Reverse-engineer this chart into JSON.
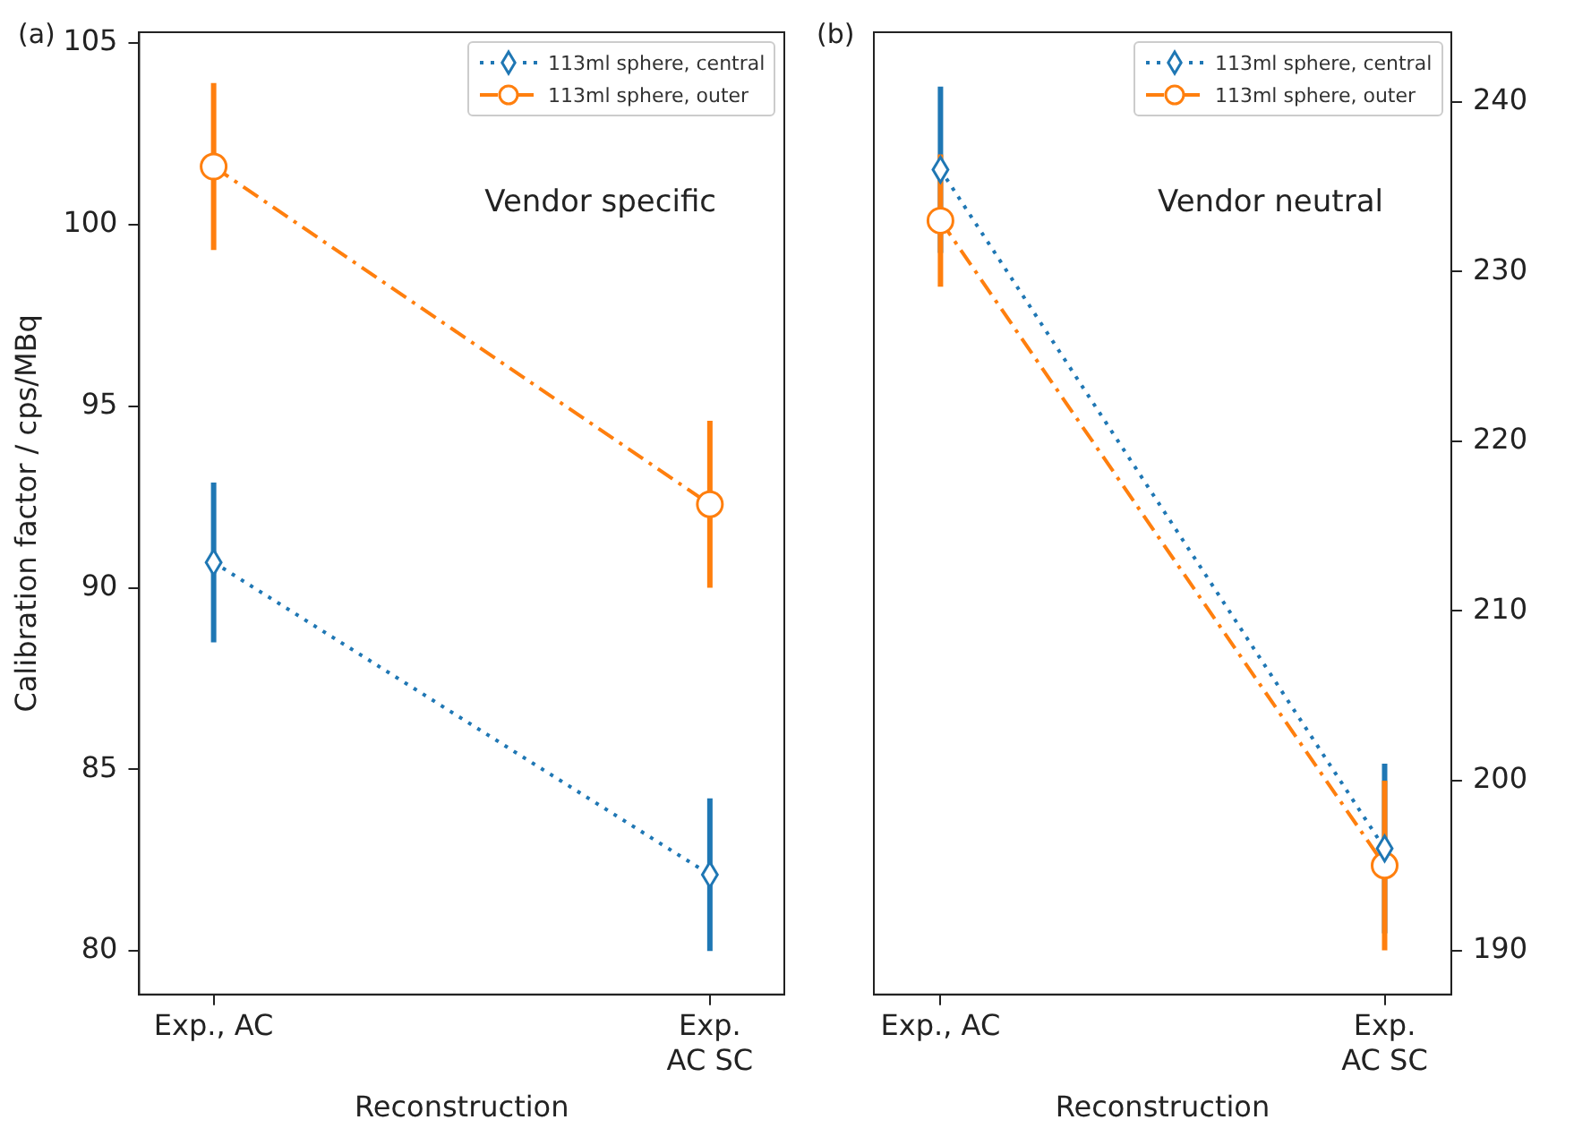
{
  "chart_data": [
    {
      "type": "line",
      "categories": [
        "Exp., AC",
        "Exp.\nAC SC"
      ],
      "xlabel": "Reconstruction",
      "ylabel": "Calibration factor / cps/MBq",
      "ylim": [
        78.8,
        105.3
      ],
      "yticks": [
        80,
        85,
        90,
        95,
        100,
        105
      ],
      "grid": false,
      "legend": "top right",
      "annotations": [
        "(a)",
        "Vendor specific"
      ],
      "series": [
        {
          "name": "113ml sphere, central",
          "color": "#1f77b4",
          "values": [
            90.7,
            82.1
          ],
          "errors": [
            2.2,
            2.1
          ],
          "marker": "diamond",
          "line_style": "dotted"
        },
        {
          "name": "113ml sphere, outer",
          "color": "#ff7f0e",
          "values": [
            101.6,
            92.3
          ],
          "errors": [
            2.3,
            2.3
          ],
          "marker": "circle",
          "line_style": "dashdot"
        }
      ]
    },
    {
      "type": "line",
      "categories": [
        "Exp., AC",
        "Exp.\nAC SC"
      ],
      "xlabel": "Reconstruction",
      "y2lim": [
        187.4,
        244.1
      ],
      "y2ticks": [
        190,
        200,
        210,
        220,
        230,
        240
      ],
      "grid": false,
      "legend": "top right",
      "annotations": [
        "(b)",
        "Vendor neutral"
      ],
      "series": [
        {
          "name": "113ml sphere, central",
          "color": "#1f77b4",
          "values": [
            236.0,
            196.0
          ],
          "errors": [
            4.9,
            5.0
          ],
          "marker": "diamond",
          "line_style": "dotted",
          "axis": "y2"
        },
        {
          "name": "113ml sphere, outer",
          "color": "#ff7f0e",
          "values": [
            233.0,
            195.0
          ],
          "errors": [
            3.9,
            5.0
          ],
          "marker": "circle",
          "line_style": "dashdot",
          "axis": "y2"
        }
      ]
    }
  ]
}
